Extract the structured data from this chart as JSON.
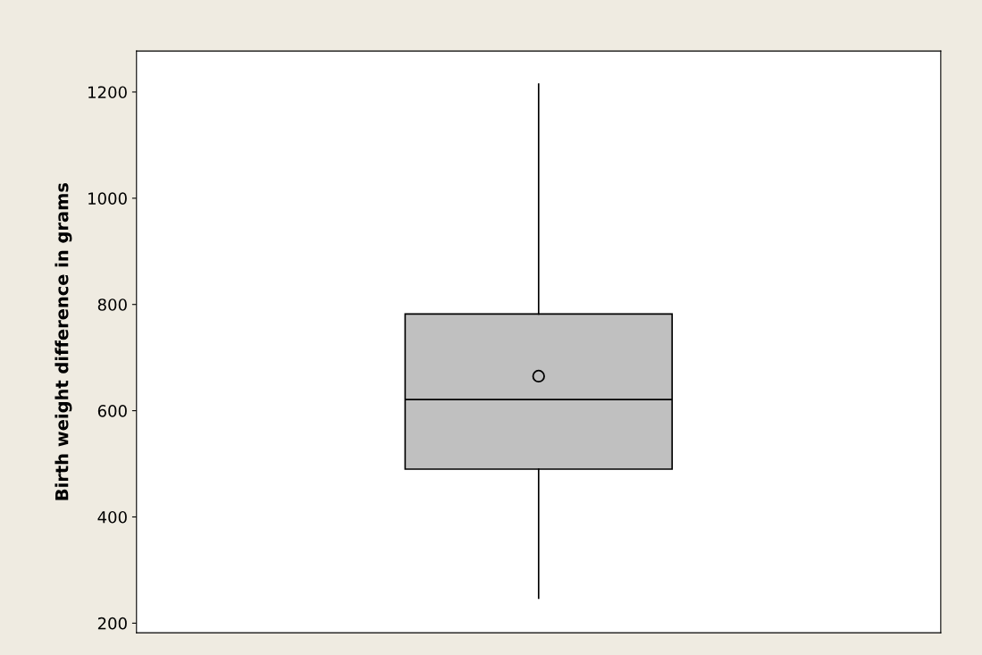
{
  "chart_data": {
    "type": "box",
    "ylabel": "Birth weight difference in grams",
    "categories": [
      null
    ],
    "boxes": [
      {
        "low": 247,
        "q1": 490,
        "median": 621,
        "q3": 782,
        "high": 1215,
        "mean": 665
      }
    ],
    "color": "#c0c0c0",
    "ylim": [
      182,
      1277
    ],
    "yticks": [
      200,
      400,
      600,
      800,
      1000,
      1200
    ],
    "tick_labels": "y"
  }
}
